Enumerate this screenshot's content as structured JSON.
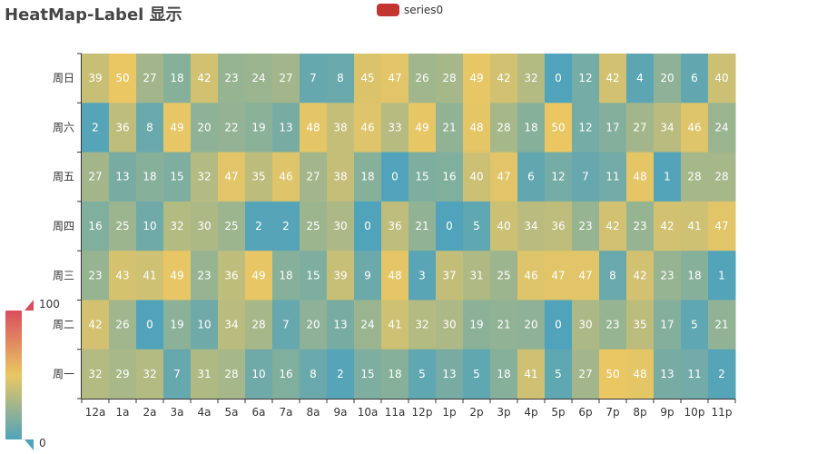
{
  "title": "HeatMap-Label 显示",
  "legend": {
    "label": "series0",
    "color": "#c23531"
  },
  "visual_map": {
    "min": 0,
    "max": 100,
    "min_label": "0",
    "max_label": "100",
    "colors": [
      "#50a3ba",
      "#eac763",
      "#d94e5d"
    ]
  },
  "chart_data": {
    "type": "heatmap",
    "title": "HeatMap-Label 显示",
    "x_categories": [
      "12a",
      "1a",
      "2a",
      "3a",
      "4a",
      "5a",
      "6a",
      "7a",
      "8a",
      "9a",
      "10a",
      "11a",
      "12p",
      "1p",
      "2p",
      "3p",
      "4p",
      "5p",
      "6p",
      "7p",
      "8p",
      "9p",
      "10p",
      "11p"
    ],
    "y_categories": [
      "周日",
      "周六",
      "周五",
      "周四",
      "周三",
      "周二",
      "周一"
    ],
    "values": [
      [
        39,
        50,
        27,
        18,
        42,
        23,
        24,
        27,
        7,
        8,
        45,
        47,
        26,
        28,
        49,
        42,
        32,
        0,
        12,
        42,
        4,
        20,
        6,
        40
      ],
      [
        2,
        36,
        8,
        49,
        20,
        22,
        19,
        13,
        48,
        38,
        46,
        33,
        49,
        21,
        48,
        28,
        18,
        50,
        12,
        17,
        27,
        34,
        46,
        24
      ],
      [
        27,
        13,
        18,
        15,
        32,
        47,
        35,
        46,
        27,
        38,
        18,
        0,
        15,
        16,
        40,
        47,
        6,
        12,
        7,
        11,
        48,
        1,
        28,
        28
      ],
      [
        16,
        25,
        10,
        32,
        30,
        25,
        2,
        2,
        25,
        30,
        0,
        36,
        21,
        0,
        5,
        40,
        34,
        36,
        23,
        42,
        23,
        42,
        41,
        47
      ],
      [
        23,
        43,
        41,
        49,
        23,
        36,
        49,
        18,
        15,
        39,
        9,
        48,
        3,
        37,
        31,
        25,
        46,
        47,
        47,
        8,
        42,
        23,
        18,
        1
      ],
      [
        42,
        26,
        0,
        19,
        10,
        34,
        28,
        7,
        20,
        13,
        24,
        41,
        32,
        30,
        19,
        21,
        20,
        0,
        30,
        23,
        35,
        17,
        5,
        21
      ],
      [
        32,
        29,
        32,
        7,
        31,
        28,
        10,
        16,
        8,
        2,
        15,
        18,
        5,
        13,
        5,
        18,
        41,
        5,
        27,
        50,
        48,
        13,
        11,
        2
      ]
    ],
    "series_name": "series0",
    "show_labels": true
  }
}
